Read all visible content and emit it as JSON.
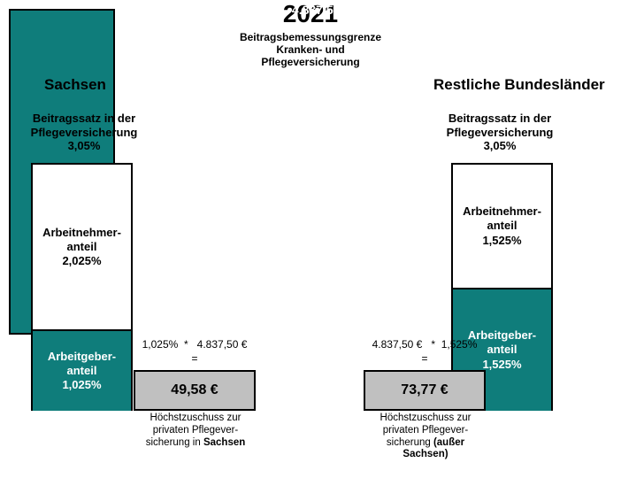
{
  "year": "2021",
  "subtitle_l1": "Beitragsbemessungsgrenze",
  "subtitle_l2": "Kranken- und",
  "subtitle_l3": "Pflegeversicherung",
  "colors": {
    "teal": "#0f7d7b",
    "grey": "#c0c0c0",
    "border": "#000000",
    "bg": "#ffffff"
  },
  "center_bar": {
    "value": "4.837,50 €"
  },
  "sachsen": {
    "title": "Sachsen",
    "rate_header_l1": "Beitragssatz in der",
    "rate_header_l2": "Pflegeversicherung",
    "rate_total": "3,05%",
    "an_label": "Arbeitnehmer-\nanteil",
    "an_pct": "2,025%",
    "ag_label": "Arbeitgeber-\nanteil",
    "ag_pct": "1,025%",
    "calc_left": "1,025%",
    "calc_op": "*",
    "calc_right": "4.837,50 €",
    "result": "49,58 €",
    "caption_pre": "Höchstzuschuss zur privaten Pflegever-sicherung in ",
    "caption_bold": "Sachsen"
  },
  "rest": {
    "title": "Restliche Bundesländer",
    "rate_header_l1": "Beitragssatz in der",
    "rate_header_l2": "Pflegeversicherung",
    "rate_total": "3,05%",
    "an_label": "Arbeitnehmer-\nanteil",
    "an_pct": "1,525%",
    "ag_label": "Arbeitgeber-\nanteil",
    "ag_pct": "1,525%",
    "calc_left": "4.837,50 €",
    "calc_op": "*",
    "calc_right": "1,525%",
    "result": "73,77 €",
    "caption_pre": "Höchstzuschuss zur privaten Pflegever-sicherung ",
    "caption_bold": "(außer Sachsen)"
  }
}
